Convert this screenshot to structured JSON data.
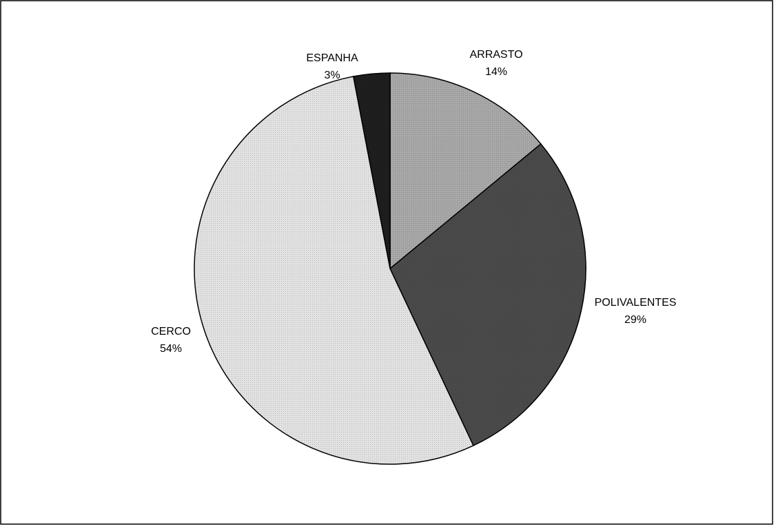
{
  "chart_data": {
    "type": "pie",
    "categories": [
      "ARRASTO",
      "POLIVALENTES",
      "CERCO",
      "ESPANHA"
    ],
    "values": [
      14,
      29,
      54,
      3
    ],
    "value_labels": [
      "14%",
      "29%",
      "54%",
      "3%"
    ],
    "colors": [
      "#a8a8a8",
      "#4a4a4a",
      "#e2e2e2",
      "#1e1e1e"
    ]
  }
}
